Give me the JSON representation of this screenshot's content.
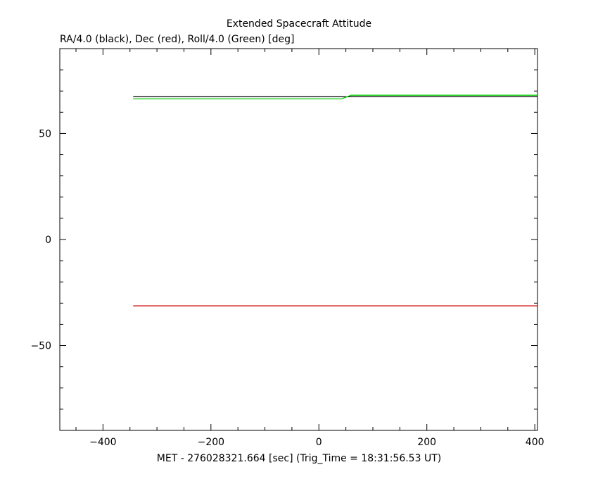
{
  "chart_data": {
    "type": "line",
    "title": "Extended Spacecraft Attitude",
    "subtitle": "RA/4.0 (black), Dec (red), Roll/4.0 (Green) [deg]",
    "xlabel": "MET - 276028321.664 [sec] (Trig_Time = 18:31:56.53 UT)",
    "ylabel": "",
    "xlim": [
      -480,
      405
    ],
    "ylim": [
      -90,
      90
    ],
    "x_ticks": [
      -400,
      -200,
      0,
      200,
      400
    ],
    "y_ticks": [
      -50,
      0,
      50
    ],
    "grid": false,
    "series": [
      {
        "color": "#000000",
        "x": [
          -344,
          405
        ],
        "y": [
          67.3,
          67.3
        ]
      },
      {
        "color": "#cc0000",
        "x": [
          -344,
          405
        ],
        "y": [
          -31.3,
          -31.3
        ]
      },
      {
        "color": "#00cc00",
        "x": [
          -344,
          42,
          60,
          405
        ],
        "y": [
          66.3,
          66.3,
          68.0,
          68.0
        ]
      }
    ]
  }
}
